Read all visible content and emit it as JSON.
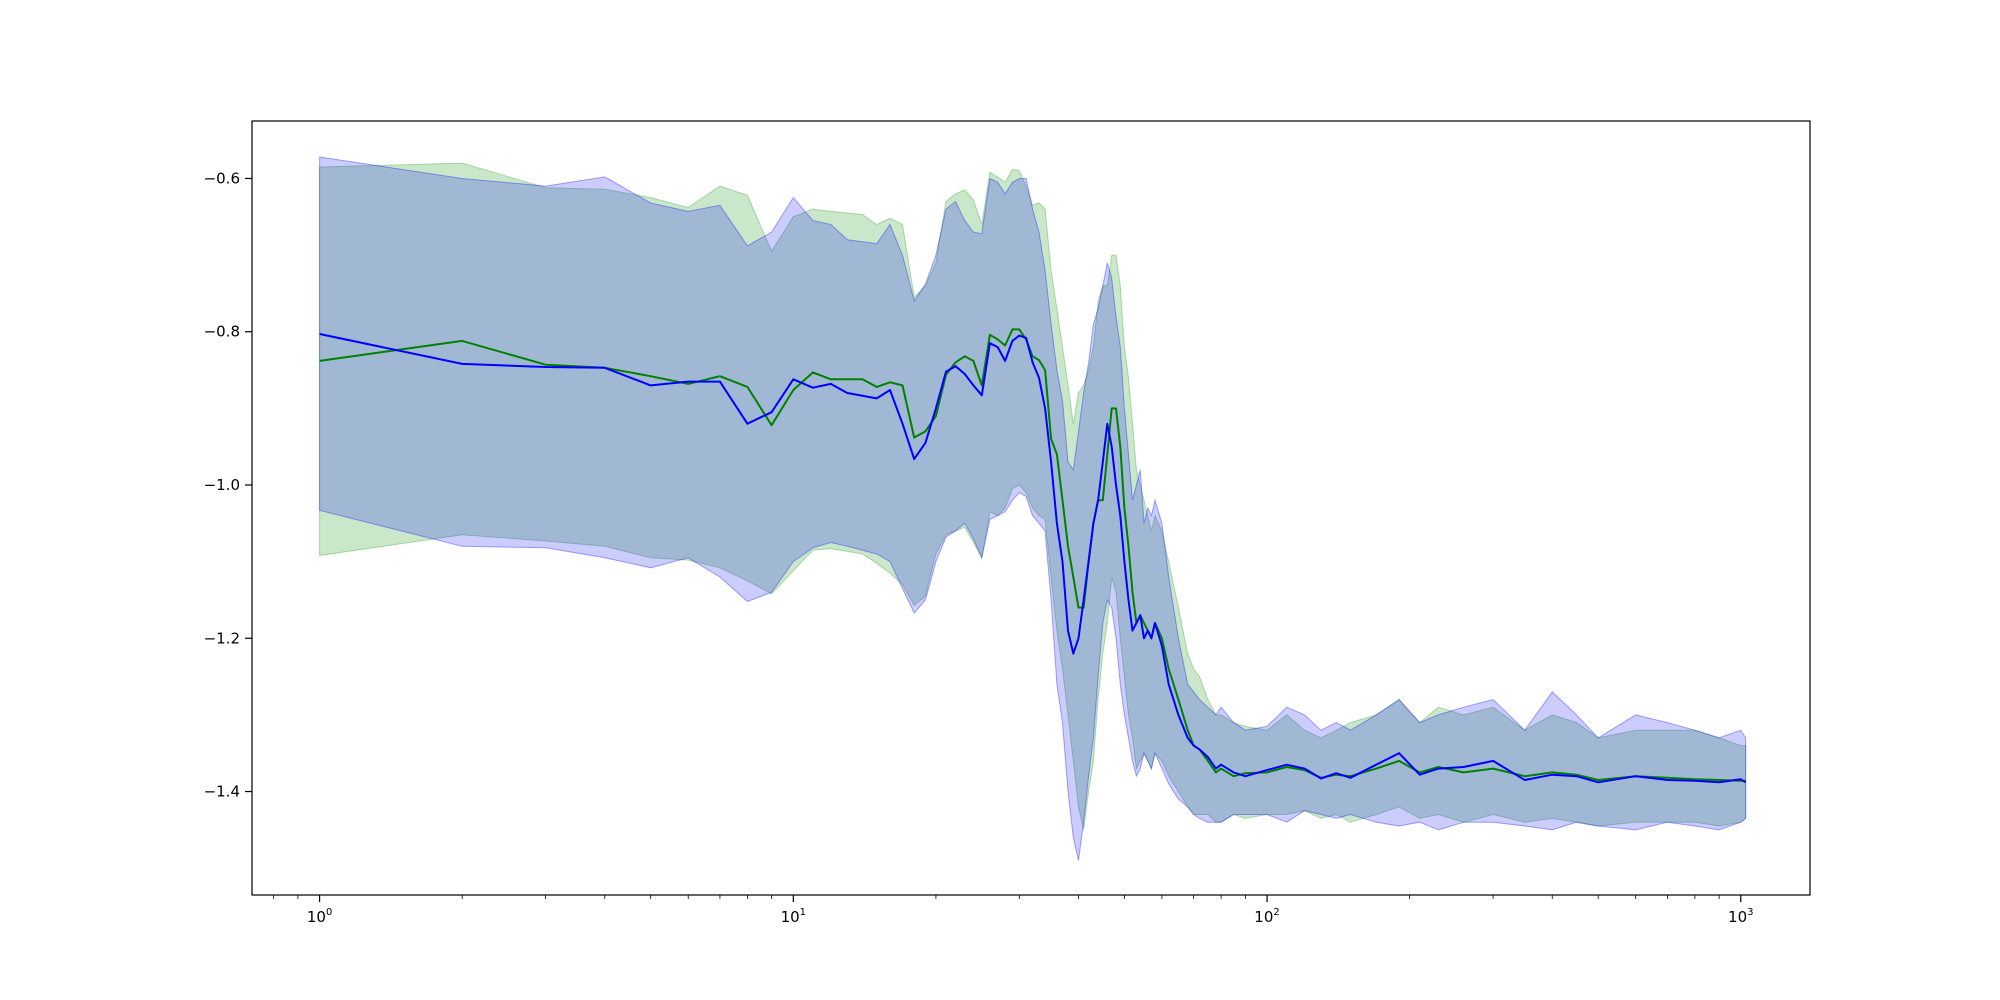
{
  "chart_data": {
    "type": "line",
    "title": "",
    "xlabel": "",
    "ylabel": "",
    "x_scale": "log",
    "xlim": [
      0.72,
      1400
    ],
    "ylim": [
      -1.535,
      -0.525
    ],
    "grid": false,
    "legend": "none",
    "x_ticks": [
      {
        "value": 1,
        "base": "10",
        "exp": "0"
      },
      {
        "value": 10,
        "base": "10",
        "exp": "1"
      },
      {
        "value": 100,
        "base": "10",
        "exp": "2"
      },
      {
        "value": 1000,
        "base": "10",
        "exp": "3"
      }
    ],
    "y_ticks": [
      {
        "value": -0.6,
        "label": "−0.6"
      },
      {
        "value": -0.8,
        "label": "−0.8"
      },
      {
        "value": -1.0,
        "label": "−1.0"
      },
      {
        "value": -1.2,
        "label": "−1.2"
      },
      {
        "value": -1.4,
        "label": "−1.4"
      }
    ],
    "series": [
      {
        "color": "#008000",
        "band_color": "#2ca02c",
        "band_opacity": 0.25,
        "x": [
          1,
          2,
          3,
          4,
          5,
          6,
          7,
          8,
          9,
          10,
          11,
          12,
          14,
          15,
          16,
          17,
          18,
          19,
          20,
          21,
          22,
          23,
          24,
          25,
          26,
          27,
          28,
          29,
          30,
          31,
          32,
          33,
          34,
          35,
          36,
          37,
          38,
          39,
          40,
          41,
          42,
          43,
          44,
          45,
          46,
          47,
          48,
          49,
          50,
          51,
          52,
          53,
          54,
          55,
          56,
          57,
          58,
          60,
          62,
          65,
          68,
          70,
          72,
          75,
          78,
          80,
          85,
          90,
          100,
          110,
          120,
          130,
          140,
          150,
          170,
          190,
          210,
          230,
          260,
          300,
          350,
          400,
          450,
          500,
          600,
          700,
          800,
          900,
          1000,
          1024
        ],
        "y": [
          -0.838,
          -0.812,
          -0.843,
          -0.847,
          -0.858,
          -0.868,
          -0.858,
          -0.872,
          -0.922,
          -0.876,
          -0.853,
          -0.862,
          -0.862,
          -0.872,
          -0.866,
          -0.87,
          -0.938,
          -0.93,
          -0.91,
          -0.856,
          -0.84,
          -0.832,
          -0.838,
          -0.87,
          -0.804,
          -0.81,
          -0.818,
          -0.797,
          -0.797,
          -0.81,
          -0.832,
          -0.837,
          -0.85,
          -0.94,
          -0.96,
          -1.02,
          -1.08,
          -1.12,
          -1.16,
          -1.16,
          -1.1,
          -1.05,
          -1.02,
          -1.02,
          -0.96,
          -0.9,
          -0.9,
          -0.95,
          -1.03,
          -1.08,
          -1.14,
          -1.18,
          -1.17,
          -1.18,
          -1.19,
          -1.2,
          -1.18,
          -1.2,
          -1.24,
          -1.28,
          -1.32,
          -1.34,
          -1.345,
          -1.36,
          -1.375,
          -1.37,
          -1.38,
          -1.376,
          -1.375,
          -1.368,
          -1.372,
          -1.382,
          -1.378,
          -1.38,
          -1.37,
          -1.36,
          -1.375,
          -1.368,
          -1.375,
          -1.37,
          -1.38,
          -1.375,
          -1.378,
          -1.385,
          -1.38,
          -1.382,
          -1.384,
          -1.385,
          -1.386,
          -1.386
        ],
        "lower": [
          -1.092,
          -1.065,
          -1.073,
          -1.08,
          -1.095,
          -1.098,
          -1.108,
          -1.125,
          -1.142,
          -1.112,
          -1.085,
          -1.083,
          -1.09,
          -1.102,
          -1.115,
          -1.13,
          -1.157,
          -1.145,
          -1.09,
          -1.065,
          -1.06,
          -1.055,
          -1.075,
          -1.095,
          -1.035,
          -1.04,
          -1.03,
          -1.005,
          -1.0,
          -1.01,
          -1.03,
          -1.04,
          -1.045,
          -1.12,
          -1.19,
          -1.24,
          -1.3,
          -1.36,
          -1.42,
          -1.45,
          -1.4,
          -1.36,
          -1.28,
          -1.22,
          -1.18,
          -1.12,
          -1.14,
          -1.2,
          -1.25,
          -1.3,
          -1.33,
          -1.37,
          -1.36,
          -1.35,
          -1.36,
          -1.37,
          -1.35,
          -1.36,
          -1.38,
          -1.4,
          -1.42,
          -1.43,
          -1.43,
          -1.43,
          -1.44,
          -1.44,
          -1.43,
          -1.435,
          -1.43,
          -1.43,
          -1.425,
          -1.435,
          -1.43,
          -1.44,
          -1.43,
          -1.42,
          -1.435,
          -1.43,
          -1.44,
          -1.43,
          -1.44,
          -1.435,
          -1.44,
          -1.445,
          -1.44,
          -1.44,
          -1.44,
          -1.445,
          -1.44,
          -1.435
        ],
        "upper": [
          -0.585,
          -0.58,
          -0.612,
          -0.614,
          -0.625,
          -0.638,
          -0.61,
          -0.622,
          -0.695,
          -0.65,
          -0.64,
          -0.643,
          -0.647,
          -0.66,
          -0.652,
          -0.66,
          -0.755,
          -0.74,
          -0.71,
          -0.63,
          -0.62,
          -0.615,
          -0.628,
          -0.66,
          -0.592,
          -0.598,
          -0.605,
          -0.588,
          -0.59,
          -0.61,
          -0.635,
          -0.632,
          -0.64,
          -0.72,
          -0.77,
          -0.82,
          -0.87,
          -0.92,
          -0.88,
          -0.87,
          -0.85,
          -0.82,
          -0.76,
          -0.74,
          -0.74,
          -0.7,
          -0.7,
          -0.74,
          -0.82,
          -0.86,
          -0.92,
          -0.98,
          -1.0,
          -1.02,
          -1.04,
          -1.06,
          -1.04,
          -1.06,
          -1.1,
          -1.16,
          -1.22,
          -1.24,
          -1.25,
          -1.28,
          -1.3,
          -1.3,
          -1.31,
          -1.315,
          -1.32,
          -1.3,
          -1.32,
          -1.33,
          -1.32,
          -1.31,
          -1.3,
          -1.28,
          -1.31,
          -1.29,
          -1.3,
          -1.29,
          -1.32,
          -1.3,
          -1.31,
          -1.33,
          -1.32,
          -1.32,
          -1.32,
          -1.33,
          -1.34,
          -1.34
        ]
      },
      {
        "color": "#0000ff",
        "band_color": "#0000ff",
        "band_opacity": 0.2,
        "x": [
          1,
          2,
          3,
          4,
          5,
          6,
          7,
          8,
          9,
          10,
          11,
          12,
          13,
          15,
          16,
          17,
          18,
          19,
          20,
          21,
          22,
          23,
          24,
          25,
          26,
          27,
          28,
          29,
          30,
          31,
          32,
          33,
          34,
          35,
          36,
          37,
          38,
          39,
          40,
          41,
          42,
          43,
          44,
          45,
          46,
          47,
          48,
          49,
          50,
          51,
          52,
          53,
          54,
          55,
          56,
          57,
          58,
          60,
          62,
          65,
          68,
          70,
          72,
          75,
          78,
          80,
          85,
          90,
          100,
          110,
          120,
          130,
          140,
          150,
          170,
          190,
          210,
          230,
          260,
          300,
          350,
          400,
          450,
          500,
          600,
          700,
          800,
          900,
          1000,
          1024
        ],
        "y": [
          -0.803,
          -0.842,
          -0.846,
          -0.847,
          -0.87,
          -0.865,
          -0.865,
          -0.92,
          -0.905,
          -0.862,
          -0.873,
          -0.868,
          -0.88,
          -0.887,
          -0.876,
          -0.92,
          -0.966,
          -0.945,
          -0.9,
          -0.852,
          -0.845,
          -0.855,
          -0.87,
          -0.883,
          -0.815,
          -0.82,
          -0.838,
          -0.812,
          -0.805,
          -0.808,
          -0.84,
          -0.86,
          -0.9,
          -0.97,
          -1.05,
          -1.1,
          -1.19,
          -1.22,
          -1.2,
          -1.15,
          -1.1,
          -1.05,
          -1.02,
          -0.97,
          -0.92,
          -0.95,
          -1.0,
          -1.04,
          -1.1,
          -1.15,
          -1.19,
          -1.18,
          -1.17,
          -1.2,
          -1.19,
          -1.2,
          -1.18,
          -1.21,
          -1.26,
          -1.3,
          -1.33,
          -1.34,
          -1.345,
          -1.355,
          -1.37,
          -1.365,
          -1.375,
          -1.38,
          -1.372,
          -1.365,
          -1.37,
          -1.383,
          -1.376,
          -1.382,
          -1.365,
          -1.35,
          -1.378,
          -1.37,
          -1.368,
          -1.36,
          -1.385,
          -1.378,
          -1.38,
          -1.388,
          -1.38,
          -1.385,
          -1.386,
          -1.388,
          -1.384,
          -1.388
        ],
        "lower": [
          -1.033,
          -1.08,
          -1.082,
          -1.095,
          -1.108,
          -1.095,
          -1.12,
          -1.152,
          -1.14,
          -1.1,
          -1.082,
          -1.075,
          -1.08,
          -1.09,
          -1.1,
          -1.135,
          -1.167,
          -1.15,
          -1.1,
          -1.068,
          -1.06,
          -1.05,
          -1.07,
          -1.095,
          -1.045,
          -1.04,
          -1.035,
          -1.02,
          -1.01,
          -1.015,
          -1.04,
          -1.05,
          -1.06,
          -1.15,
          -1.26,
          -1.31,
          -1.4,
          -1.46,
          -1.49,
          -1.44,
          -1.38,
          -1.33,
          -1.25,
          -1.18,
          -1.15,
          -1.16,
          -1.2,
          -1.26,
          -1.3,
          -1.33,
          -1.36,
          -1.38,
          -1.37,
          -1.35,
          -1.36,
          -1.37,
          -1.35,
          -1.37,
          -1.39,
          -1.41,
          -1.42,
          -1.43,
          -1.435,
          -1.44,
          -1.44,
          -1.44,
          -1.43,
          -1.43,
          -1.43,
          -1.44,
          -1.425,
          -1.43,
          -1.435,
          -1.43,
          -1.44,
          -1.445,
          -1.44,
          -1.45,
          -1.44,
          -1.44,
          -1.445,
          -1.45,
          -1.44,
          -1.445,
          -1.45,
          -1.44,
          -1.445,
          -1.45,
          -1.44,
          -1.435
        ],
        "upper": [
          -0.572,
          -0.6,
          -0.61,
          -0.598,
          -0.632,
          -0.643,
          -0.635,
          -0.688,
          -0.67,
          -0.625,
          -0.655,
          -0.66,
          -0.68,
          -0.685,
          -0.66,
          -0.7,
          -0.76,
          -0.738,
          -0.7,
          -0.64,
          -0.63,
          -0.655,
          -0.67,
          -0.672,
          -0.6,
          -0.605,
          -0.62,
          -0.605,
          -0.6,
          -0.6,
          -0.64,
          -0.67,
          -0.72,
          -0.79,
          -0.85,
          -0.89,
          -0.97,
          -0.98,
          -0.93,
          -0.88,
          -0.84,
          -0.79,
          -0.77,
          -0.74,
          -0.71,
          -0.73,
          -0.78,
          -0.82,
          -0.9,
          -0.96,
          -1.02,
          -1.0,
          -0.98,
          -1.05,
          -1.03,
          -1.04,
          -1.02,
          -1.05,
          -1.12,
          -1.2,
          -1.26,
          -1.27,
          -1.28,
          -1.29,
          -1.3,
          -1.29,
          -1.31,
          -1.32,
          -1.315,
          -1.29,
          -1.3,
          -1.32,
          -1.31,
          -1.32,
          -1.3,
          -1.28,
          -1.31,
          -1.3,
          -1.29,
          -1.28,
          -1.32,
          -1.27,
          -1.3,
          -1.33,
          -1.3,
          -1.31,
          -1.32,
          -1.33,
          -1.32,
          -1.33
        ]
      }
    ]
  }
}
